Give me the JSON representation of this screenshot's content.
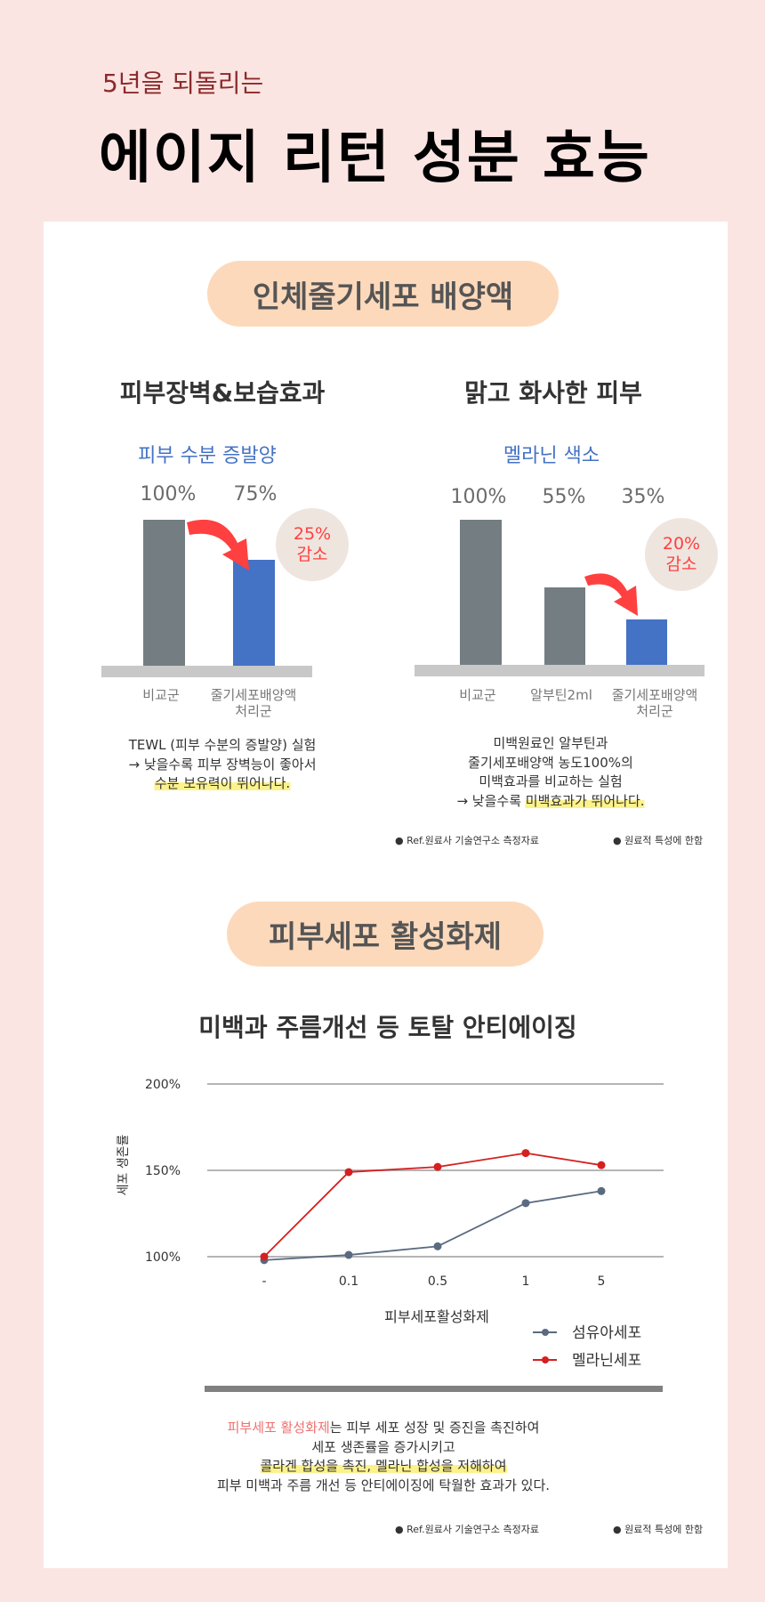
{
  "header": {
    "subtitle": "5년을 되돌리는",
    "title": "에이지 리턴 성분 효능"
  },
  "section1": {
    "pill": "인체줄기세포 배양액",
    "left": {
      "heading": "피부장벽&보습효과",
      "metric": "피부 수분 증발양",
      "bars": [
        {
          "label": "비교군",
          "value_label": "100%",
          "value": 100
        },
        {
          "label": "줄기세포배양액",
          "label2": "처리군",
          "value_label": "75%",
          "value": 75
        }
      ],
      "badge": [
        "25%",
        "감소"
      ],
      "desc": [
        "TEWL (피부 수분의 증발양) 실험",
        "→ 낮을수록 피부 장벽능이 좋아서",
        "수분 보유력이 뛰어나다."
      ]
    },
    "right": {
      "heading": "맑고 화사한 피부",
      "metric": "멜라닌 색소",
      "bars": [
        {
          "label": "비교군",
          "value_label": "100%",
          "value": 100
        },
        {
          "label": "알부틴2ml",
          "value_label": "55%",
          "value": 55
        },
        {
          "label": "줄기세포배양액",
          "label2": "처리군",
          "value_label": "35%",
          "value": 35
        }
      ],
      "badge": [
        "20%",
        "감소"
      ],
      "desc": [
        "미백원료인 알부틴과",
        "줄기세포배양액 농도100%의",
        "미백효과를 비교하는 실험",
        "→  낮을수록 ",
        "미백효과가 뛰어나다."
      ]
    },
    "footnotes": [
      "Ref.원료사 기술연구소 측정자료",
      "원료적 특성에 한함"
    ]
  },
  "section2": {
    "pill": "피부세포 활성화제",
    "heading": "미백과 주름개선 등 토탈 안티에이징",
    "desc": {
      "l1_red": "피부세포 활성화제",
      "l1_rest": "는 피부 세포 성장 및 증진을 촉진하여",
      "l2": "세포 생존률을 증가시키고",
      "l3": "콜라겐 합성을 촉진, 멜라닌 합성을 저해하여",
      "l4": "피부 미백과 주름 개선 등 안티에이징에 탁월한 효과가 있다."
    },
    "footnotes": [
      "Ref.원료사 기술연구소 측정자료",
      "원료적 특성에 한함"
    ]
  },
  "chart_data": {
    "type": "line",
    "title": "미백과 주름개선 등 토탈 안티에이징",
    "xlabel": "피부세포활성화제",
    "ylabel": "세포 생존률",
    "categories": [
      "-",
      "0.1",
      "0.5",
      "1",
      "5"
    ],
    "yticks": [
      "200%",
      "150%",
      "100%"
    ],
    "ylim": [
      100,
      200
    ],
    "grid": true,
    "legend": "bottom-right",
    "series": [
      {
        "name": "섬유아세포",
        "color": "#5a6a80",
        "values": [
          98,
          101,
          106,
          131,
          138
        ]
      },
      {
        "name": "멜라닌세포",
        "color": "#d42020",
        "values": [
          100,
          149,
          152,
          160,
          153
        ]
      }
    ]
  }
}
